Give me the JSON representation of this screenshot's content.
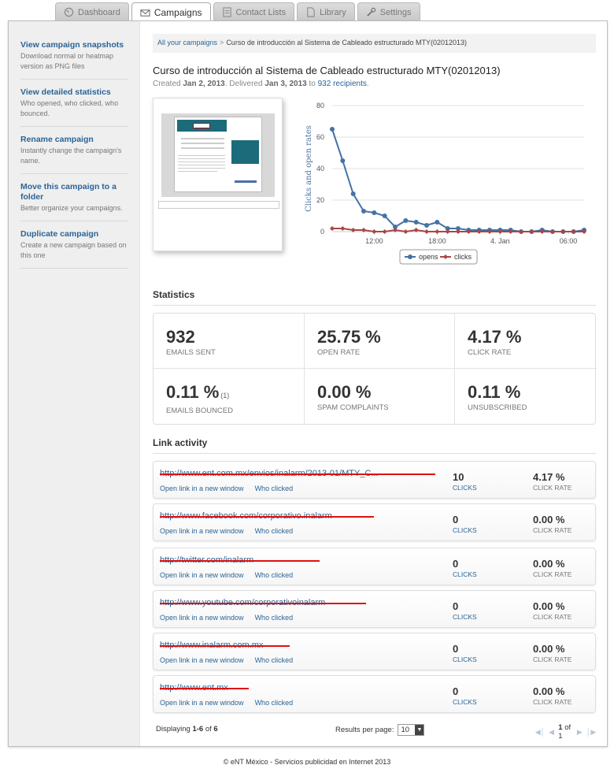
{
  "tabs": [
    {
      "label": "Dashboard",
      "icon": "dashboard-icon",
      "active": false
    },
    {
      "label": "Campaigns",
      "icon": "envelope-icon",
      "active": true
    },
    {
      "label": "Contact Lists",
      "icon": "contacts-icon",
      "active": false
    },
    {
      "label": "Library",
      "icon": "library-icon",
      "active": false
    },
    {
      "label": "Settings",
      "icon": "wrench-icon",
      "active": false
    }
  ],
  "sidebar": {
    "items": [
      {
        "title": "View campaign snapshots",
        "desc": "Download normal or heatmap version as PNG files"
      },
      {
        "title": "View detailed statistics",
        "desc": "Who opened, who clicked, who bounced."
      },
      {
        "title": "Rename campaign",
        "desc": "Instantly change the campaign's name."
      },
      {
        "title": "Move this campaign to a folder",
        "desc": "Better organize your campaigns."
      },
      {
        "title": "Duplicate campaign",
        "desc": "Create a new campaign based on this one"
      }
    ]
  },
  "breadcrumb": {
    "root": "All your campaigns",
    "sep": ">",
    "current": "Curso de introducción al Sistema de Cableado estructurado MTY(02012013)"
  },
  "campaign": {
    "title": "Curso de introducción al Sistema de Cableado estructurado MTY(02012013)",
    "created_label": "Created",
    "created": "Jan 2, 2013",
    "delivered_label": ". Delivered",
    "delivered": "Jan 3, 2013",
    "to_label": "to",
    "recipients": "932 recipients",
    "end": "."
  },
  "chart_data": {
    "type": "line",
    "ylabel": "Clicks and open rates",
    "xlabel": "",
    "ylim": [
      0,
      80
    ],
    "yticks": [
      0,
      20,
      40,
      60,
      80
    ],
    "xticks": [
      "12:00",
      "18:00",
      "4. Jan",
      "06:00"
    ],
    "grid": true,
    "legend_position": "bottom",
    "series": [
      {
        "name": "opens",
        "color": "#4572a7",
        "x": [
          0,
          1,
          2,
          3,
          4,
          5,
          6,
          7,
          8,
          9,
          10,
          11,
          12,
          13,
          14,
          15,
          16,
          17,
          18,
          19,
          20,
          21,
          22,
          23,
          24
        ],
        "values": [
          65,
          45,
          24,
          13,
          12,
          10,
          3,
          7,
          6,
          4,
          6,
          2,
          2,
          1,
          1,
          1,
          1,
          1,
          0,
          0,
          1,
          0,
          0,
          0,
          1
        ]
      },
      {
        "name": "clicks",
        "color": "#aa4643",
        "x": [
          0,
          1,
          2,
          3,
          4,
          5,
          6,
          7,
          8,
          9,
          10,
          11,
          12,
          13,
          14,
          15,
          16,
          17,
          18,
          19,
          20,
          21,
          22,
          23,
          24
        ],
        "values": [
          2,
          2,
          1,
          1,
          0,
          0,
          1,
          0,
          1,
          0,
          0,
          0,
          0,
          0,
          0,
          0,
          0,
          0,
          0,
          0,
          0,
          0,
          0,
          0,
          0
        ]
      }
    ]
  },
  "statistics": {
    "heading": "Statistics",
    "cells": [
      {
        "value": "932",
        "note": "",
        "label": "EMAILS SENT"
      },
      {
        "value": "25.75 %",
        "note": "",
        "label": "OPEN RATE"
      },
      {
        "value": "4.17 %",
        "note": "",
        "label": "CLICK RATE"
      },
      {
        "value": "0.11 %",
        "note": "(1)",
        "label": "EMAILS BOUNCED"
      },
      {
        "value": "0.00 %",
        "note": "",
        "label": "SPAM COMPLAINTS"
      },
      {
        "value": "0.11 %",
        "note": "",
        "label": "UNSUBSCRIBED"
      }
    ]
  },
  "links": {
    "heading": "Link activity",
    "open_label": "Open link in a new window",
    "who_label": "Who clicked",
    "clicks_unit": "CLICKS",
    "rate_unit": "CLICK RATE",
    "rows": [
      {
        "url": "http://www.ent.com.mx/envios/inalarm/2013-01/MTY_C...",
        "clicks": "10",
        "rate": "4.17 %"
      },
      {
        "url": "http://www.facebook.com/corporativo.inalarm",
        "clicks": "0",
        "rate": "0.00 %"
      },
      {
        "url": "http://twitter.com/inalarm",
        "clicks": "0",
        "rate": "0.00 %"
      },
      {
        "url": "http://www.youtube.com/corporativoinalarm",
        "clicks": "0",
        "rate": "0.00 %"
      },
      {
        "url": "http://www.inalarm.com.mx",
        "clicks": "0",
        "rate": "0.00 %"
      },
      {
        "url": "http://www.ent.mx",
        "clicks": "0",
        "rate": "0.00 %"
      }
    ]
  },
  "pager": {
    "displaying_prefix": "Displaying",
    "range": "1-6",
    "of_label": "of",
    "total": "6",
    "rpp_label": "Results per page:",
    "rpp_value": "10",
    "page": "1",
    "page_of": "of",
    "pages": "1"
  },
  "footer": "© eNT México - Servicios publicidad en Internet 2013"
}
